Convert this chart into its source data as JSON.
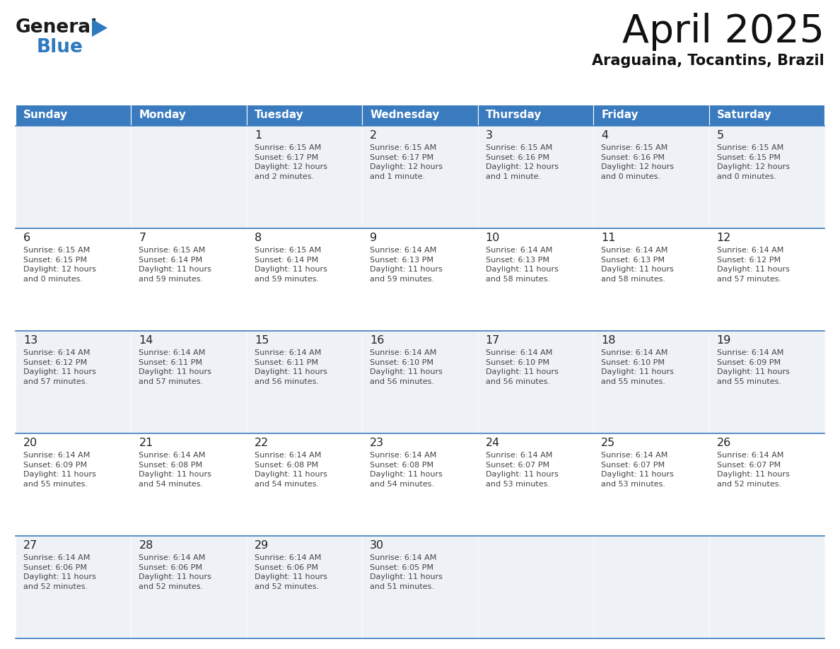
{
  "title": "April 2025",
  "subtitle": "Araguaina, Tocantins, Brazil",
  "header_bg_color": "#3a7bbf",
  "header_text_color": "#ffffff",
  "row_bg_colors": [
    "#eef2f7",
    "#ffffff"
  ],
  "border_color": "#3a7bbf",
  "text_color": "#444444",
  "day_number_color": "#222222",
  "day_headers": [
    "Sunday",
    "Monday",
    "Tuesday",
    "Wednesday",
    "Thursday",
    "Friday",
    "Saturday"
  ],
  "logo_general_color": "#1a1a1a",
  "logo_blue_color": "#2e7abf",
  "logo_triangle_color": "#2e7abf",
  "weeks": [
    [
      {
        "day": "",
        "info": ""
      },
      {
        "day": "",
        "info": ""
      },
      {
        "day": "1",
        "info": "Sunrise: 6:15 AM\nSunset: 6:17 PM\nDaylight: 12 hours\nand 2 minutes."
      },
      {
        "day": "2",
        "info": "Sunrise: 6:15 AM\nSunset: 6:17 PM\nDaylight: 12 hours\nand 1 minute."
      },
      {
        "day": "3",
        "info": "Sunrise: 6:15 AM\nSunset: 6:16 PM\nDaylight: 12 hours\nand 1 minute."
      },
      {
        "day": "4",
        "info": "Sunrise: 6:15 AM\nSunset: 6:16 PM\nDaylight: 12 hours\nand 0 minutes."
      },
      {
        "day": "5",
        "info": "Sunrise: 6:15 AM\nSunset: 6:15 PM\nDaylight: 12 hours\nand 0 minutes."
      }
    ],
    [
      {
        "day": "6",
        "info": "Sunrise: 6:15 AM\nSunset: 6:15 PM\nDaylight: 12 hours\nand 0 minutes."
      },
      {
        "day": "7",
        "info": "Sunrise: 6:15 AM\nSunset: 6:14 PM\nDaylight: 11 hours\nand 59 minutes."
      },
      {
        "day": "8",
        "info": "Sunrise: 6:15 AM\nSunset: 6:14 PM\nDaylight: 11 hours\nand 59 minutes."
      },
      {
        "day": "9",
        "info": "Sunrise: 6:14 AM\nSunset: 6:13 PM\nDaylight: 11 hours\nand 59 minutes."
      },
      {
        "day": "10",
        "info": "Sunrise: 6:14 AM\nSunset: 6:13 PM\nDaylight: 11 hours\nand 58 minutes."
      },
      {
        "day": "11",
        "info": "Sunrise: 6:14 AM\nSunset: 6:13 PM\nDaylight: 11 hours\nand 58 minutes."
      },
      {
        "day": "12",
        "info": "Sunrise: 6:14 AM\nSunset: 6:12 PM\nDaylight: 11 hours\nand 57 minutes."
      }
    ],
    [
      {
        "day": "13",
        "info": "Sunrise: 6:14 AM\nSunset: 6:12 PM\nDaylight: 11 hours\nand 57 minutes."
      },
      {
        "day": "14",
        "info": "Sunrise: 6:14 AM\nSunset: 6:11 PM\nDaylight: 11 hours\nand 57 minutes."
      },
      {
        "day": "15",
        "info": "Sunrise: 6:14 AM\nSunset: 6:11 PM\nDaylight: 11 hours\nand 56 minutes."
      },
      {
        "day": "16",
        "info": "Sunrise: 6:14 AM\nSunset: 6:10 PM\nDaylight: 11 hours\nand 56 minutes."
      },
      {
        "day": "17",
        "info": "Sunrise: 6:14 AM\nSunset: 6:10 PM\nDaylight: 11 hours\nand 56 minutes."
      },
      {
        "day": "18",
        "info": "Sunrise: 6:14 AM\nSunset: 6:10 PM\nDaylight: 11 hours\nand 55 minutes."
      },
      {
        "day": "19",
        "info": "Sunrise: 6:14 AM\nSunset: 6:09 PM\nDaylight: 11 hours\nand 55 minutes."
      }
    ],
    [
      {
        "day": "20",
        "info": "Sunrise: 6:14 AM\nSunset: 6:09 PM\nDaylight: 11 hours\nand 55 minutes."
      },
      {
        "day": "21",
        "info": "Sunrise: 6:14 AM\nSunset: 6:08 PM\nDaylight: 11 hours\nand 54 minutes."
      },
      {
        "day": "22",
        "info": "Sunrise: 6:14 AM\nSunset: 6:08 PM\nDaylight: 11 hours\nand 54 minutes."
      },
      {
        "day": "23",
        "info": "Sunrise: 6:14 AM\nSunset: 6:08 PM\nDaylight: 11 hours\nand 54 minutes."
      },
      {
        "day": "24",
        "info": "Sunrise: 6:14 AM\nSunset: 6:07 PM\nDaylight: 11 hours\nand 53 minutes."
      },
      {
        "day": "25",
        "info": "Sunrise: 6:14 AM\nSunset: 6:07 PM\nDaylight: 11 hours\nand 53 minutes."
      },
      {
        "day": "26",
        "info": "Sunrise: 6:14 AM\nSunset: 6:07 PM\nDaylight: 11 hours\nand 52 minutes."
      }
    ],
    [
      {
        "day": "27",
        "info": "Sunrise: 6:14 AM\nSunset: 6:06 PM\nDaylight: 11 hours\nand 52 minutes."
      },
      {
        "day": "28",
        "info": "Sunrise: 6:14 AM\nSunset: 6:06 PM\nDaylight: 11 hours\nand 52 minutes."
      },
      {
        "day": "29",
        "info": "Sunrise: 6:14 AM\nSunset: 6:06 PM\nDaylight: 11 hours\nand 52 minutes."
      },
      {
        "day": "30",
        "info": "Sunrise: 6:14 AM\nSunset: 6:05 PM\nDaylight: 11 hours\nand 51 minutes."
      },
      {
        "day": "",
        "info": ""
      },
      {
        "day": "",
        "info": ""
      },
      {
        "day": "",
        "info": ""
      }
    ]
  ]
}
